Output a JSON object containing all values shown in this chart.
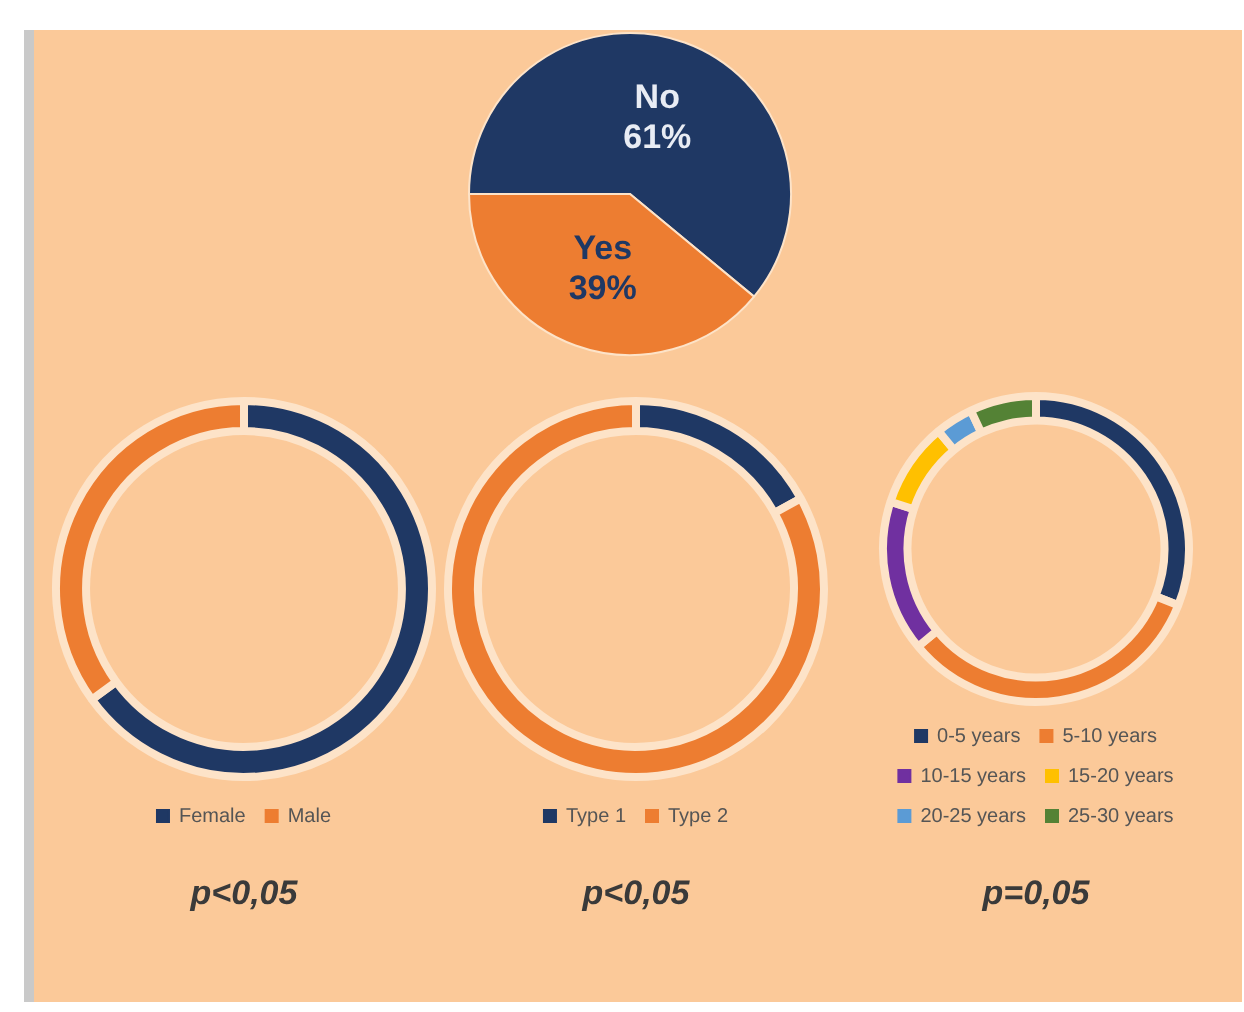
{
  "chart_data": [
    {
      "type": "pie",
      "categories": [
        "No",
        "Yes"
      ],
      "values": [
        61,
        39
      ],
      "colors": [
        "#1f3864",
        "#ed7d31"
      ],
      "value_labels": [
        "61%",
        "39%"
      ],
      "legend": false
    },
    {
      "type": "donut",
      "categories": [
        "Female",
        "Male"
      ],
      "values": [
        65,
        35
      ],
      "colors": [
        "#1f3864",
        "#ed7d31"
      ],
      "legend": "bottom",
      "annotations": [
        "p<0,05"
      ]
    },
    {
      "type": "donut",
      "categories": [
        "Type 1",
        "Type 2"
      ],
      "values": [
        17,
        83
      ],
      "colors": [
        "#1f3864",
        "#ed7d31"
      ],
      "legend": "bottom",
      "annotations": [
        "p<0,05"
      ]
    },
    {
      "type": "donut",
      "categories": [
        "0-5 years",
        "5-10 years",
        "10-15 years",
        "15-20 years",
        "20-25 years",
        "25-30 years"
      ],
      "values": [
        31,
        33,
        16,
        9,
        4,
        7
      ],
      "colors": [
        "#1f3864",
        "#ed7d31",
        "#7030a0",
        "#ffc000",
        "#5b9bd5",
        "#548235"
      ],
      "legend": "bottom",
      "annotations": [
        "p=0,05"
      ]
    }
  ]
}
